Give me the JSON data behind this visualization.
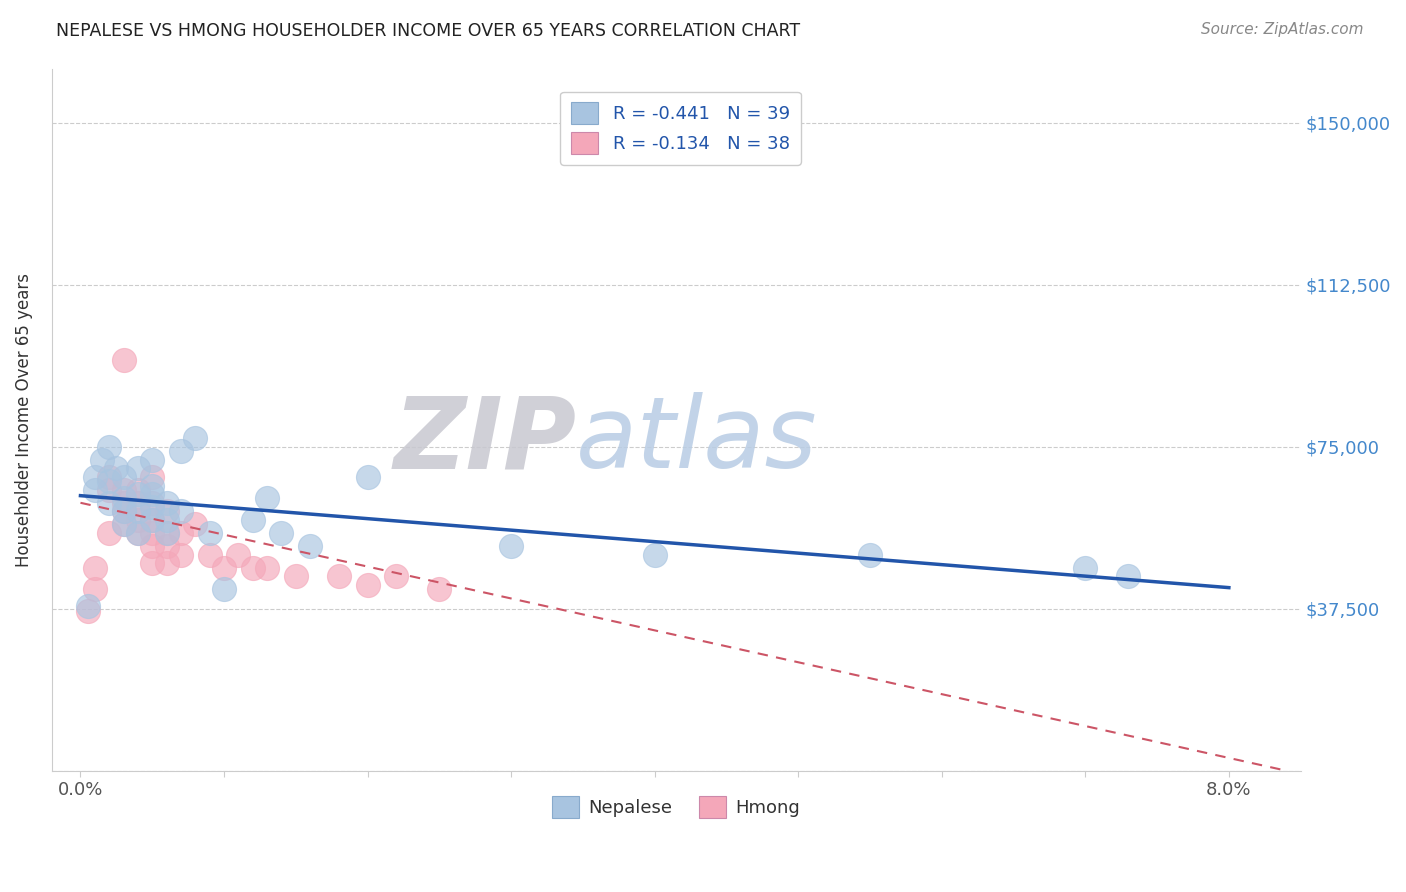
{
  "title": "NEPALESE VS HMONG HOUSEHOLDER INCOME OVER 65 YEARS CORRELATION CHART",
  "source": "Source: ZipAtlas.com",
  "ylabel": "Householder Income Over 65 years",
  "ylim": [
    0,
    162500
  ],
  "xlim": [
    -0.002,
    0.085
  ],
  "ytick_values": [
    0,
    37500,
    75000,
    112500,
    150000
  ],
  "ytick_labels": [
    "",
    "$37,500",
    "$75,000",
    "$112,500",
    "$150,000"
  ],
  "nepalese_R": -0.441,
  "nepalese_N": 39,
  "hmong_R": -0.134,
  "hmong_N": 38,
  "nepalese_color": "#a8c4e0",
  "hmong_color": "#f4a7b9",
  "nepalese_line_color": "#2255aa",
  "hmong_line_color": "#cc5566",
  "grid_color": "#cccccc",
  "background_color": "#ffffff",
  "title_color": "#222222",
  "axis_label_color": "#333333",
  "right_ytick_color": "#4488cc",
  "nepalese_x": [
    0.0005,
    0.001,
    0.001,
    0.0015,
    0.002,
    0.002,
    0.002,
    0.0025,
    0.003,
    0.003,
    0.003,
    0.003,
    0.004,
    0.004,
    0.004,
    0.004,
    0.005,
    0.005,
    0.005,
    0.005,
    0.005,
    0.006,
    0.006,
    0.006,
    0.007,
    0.007,
    0.008,
    0.009,
    0.01,
    0.012,
    0.013,
    0.014,
    0.016,
    0.02,
    0.03,
    0.04,
    0.055,
    0.07,
    0.073
  ],
  "nepalese_y": [
    38000,
    65000,
    68000,
    72000,
    62000,
    67000,
    75000,
    70000,
    57000,
    60000,
    63000,
    68000,
    55000,
    60000,
    64000,
    70000,
    58000,
    61000,
    64000,
    66000,
    72000,
    55000,
    58000,
    62000,
    60000,
    74000,
    77000,
    55000,
    42000,
    58000,
    63000,
    55000,
    52000,
    68000,
    52000,
    50000,
    50000,
    47000,
    45000
  ],
  "hmong_x": [
    0.0005,
    0.001,
    0.001,
    0.002,
    0.002,
    0.002,
    0.003,
    0.003,
    0.003,
    0.003,
    0.003,
    0.004,
    0.004,
    0.004,
    0.004,
    0.005,
    0.005,
    0.005,
    0.005,
    0.005,
    0.005,
    0.006,
    0.006,
    0.006,
    0.006,
    0.007,
    0.007,
    0.008,
    0.009,
    0.01,
    0.011,
    0.012,
    0.013,
    0.015,
    0.018,
    0.02,
    0.022,
    0.025
  ],
  "hmong_y": [
    37000,
    42000,
    47000,
    65000,
    68000,
    55000,
    57000,
    60000,
    62000,
    65000,
    95000,
    55000,
    58000,
    62000,
    65000,
    48000,
    52000,
    55000,
    58000,
    62000,
    68000,
    48000,
    52000,
    55000,
    60000,
    50000,
    55000,
    57000,
    50000,
    47000,
    50000,
    47000,
    47000,
    45000,
    45000,
    43000,
    45000,
    42000
  ]
}
